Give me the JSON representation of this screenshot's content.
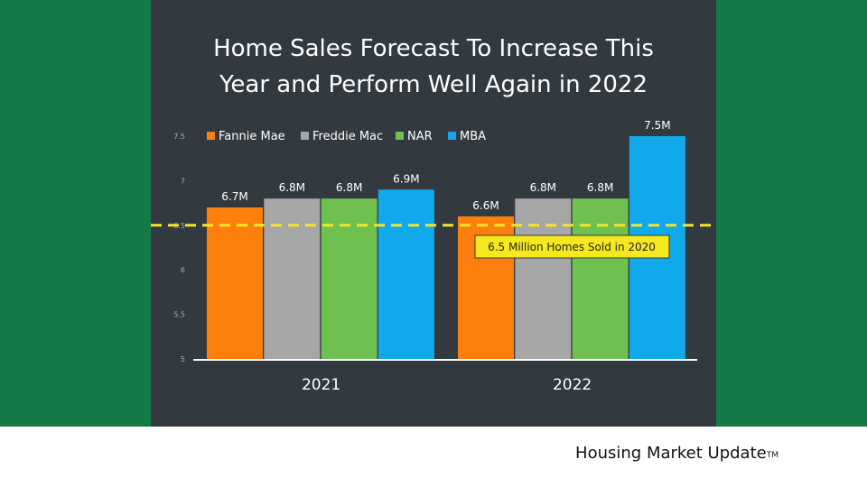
{
  "footer": {
    "brand": "Housing Market Update",
    "trademark": "TM"
  },
  "colors": {
    "green_band": "#137a45",
    "panel": "#323a40",
    "reference_line": "#f2e52a",
    "annotation_bg": "#f5e81c"
  },
  "chart_data": {
    "type": "bar",
    "title": "Home Sales Forecast To Increase This\nYear and Perform Well Again in 2022",
    "categories": [
      "2021",
      "2022"
    ],
    "series": [
      {
        "name": "Fannie Mae",
        "color": "#ff7f0e",
        "values": [
          6.7,
          6.6
        ],
        "labels": [
          "6.7M",
          "6.6M"
        ]
      },
      {
        "name": "Freddie Mac",
        "color": "#a6a6a6",
        "values": [
          6.8,
          6.8
        ],
        "labels": [
          "6.8M",
          "6.8M"
        ]
      },
      {
        "name": "NAR",
        "color": "#70c050",
        "values": [
          6.8,
          6.8
        ],
        "labels": [
          "6.8M",
          "6.8M"
        ]
      },
      {
        "name": "MBA",
        "color": "#11a9ec",
        "values": [
          6.9,
          7.5
        ],
        "labels": [
          "6.9M",
          "7.5M"
        ]
      }
    ],
    "ylim": [
      5,
      7.6
    ],
    "yticks": [
      "5",
      "5.5",
      "6",
      "6.5",
      "7",
      "7.5"
    ],
    "ytick_values": [
      5,
      5.5,
      6,
      6.5,
      7,
      7.5
    ],
    "legend_position": "top-left",
    "grid": false,
    "reference_line": {
      "value": 6.5,
      "label": "6.5 Million Homes Sold in 2020",
      "style": "dashed"
    }
  }
}
